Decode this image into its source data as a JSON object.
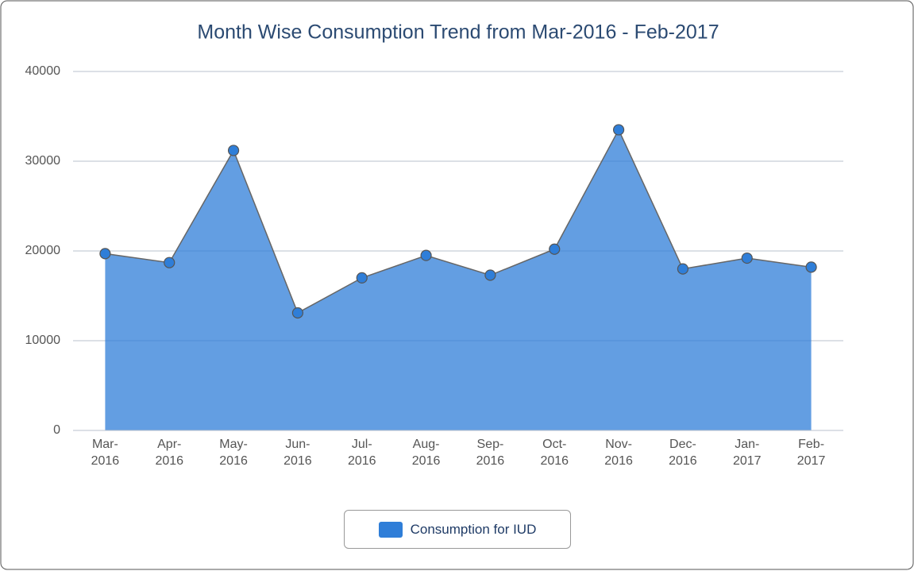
{
  "chart_data": {
    "type": "area",
    "title": "Month Wise Consumption Trend from Mar-2016 - Feb-2017",
    "categories": [
      "Mar-2016",
      "Apr-2016",
      "May-2016",
      "Jun-2016",
      "Jul-2016",
      "Aug-2016",
      "Sep-2016",
      "Oct-2016",
      "Nov-2016",
      "Dec-2016",
      "Jan-2017",
      "Feb-2017"
    ],
    "series": [
      {
        "name": "Consumption for IUD",
        "color": "#2f7ed8",
        "values": [
          19700,
          18700,
          31200,
          13100,
          17000,
          19500,
          17300,
          20200,
          33500,
          18000,
          19200,
          18200
        ]
      }
    ],
    "ylim": [
      0,
      40000
    ],
    "yticks": [
      0,
      10000,
      20000,
      30000,
      40000
    ],
    "grid": true,
    "legend": "bottom"
  }
}
